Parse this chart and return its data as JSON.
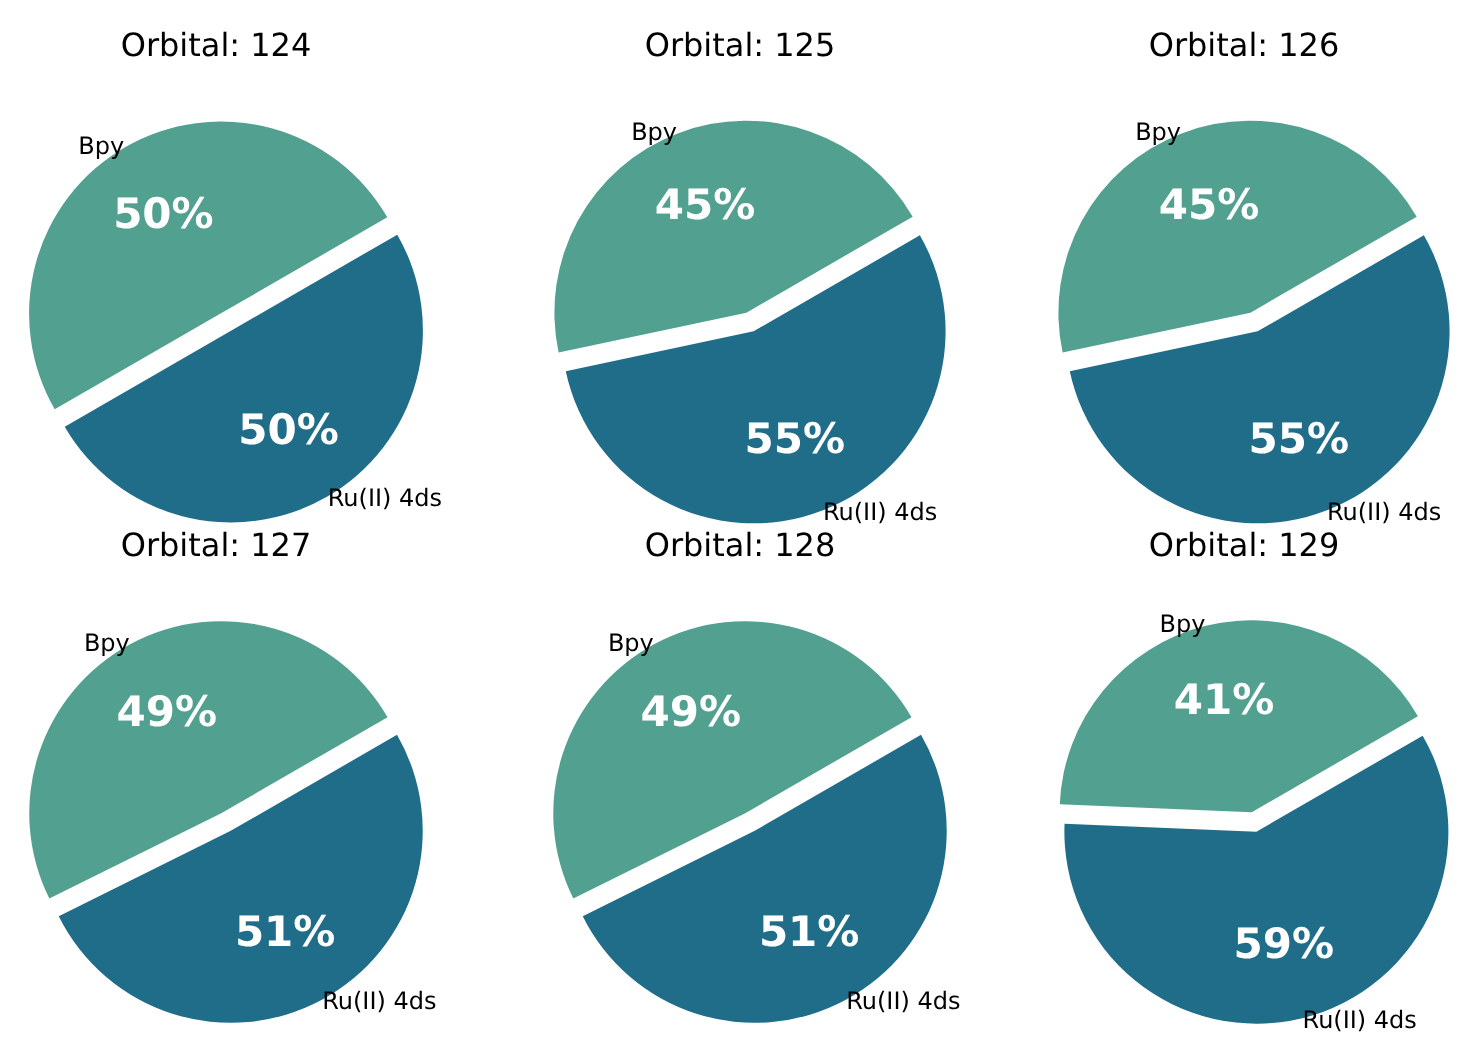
{
  "chart_data": [
    {
      "type": "pie",
      "title": "Orbital: 124",
      "categories": [
        "Bpy",
        "Ru(II) 4ds"
      ],
      "values": [
        50,
        50
      ],
      "colors": [
        "#52a090",
        "#206d8a"
      ],
      "value_labels": [
        "50%",
        "50%"
      ]
    },
    {
      "type": "pie",
      "title": "Orbital: 125",
      "categories": [
        "Bpy",
        "Ru(II) 4ds"
      ],
      "values": [
        45,
        55
      ],
      "colors": [
        "#52a090",
        "#206d8a"
      ],
      "value_labels": [
        "45%",
        "55%"
      ]
    },
    {
      "type": "pie",
      "title": "Orbital: 126",
      "categories": [
        "Bpy",
        "Ru(II) 4ds"
      ],
      "values": [
        45,
        55
      ],
      "colors": [
        "#52a090",
        "#206d8a"
      ],
      "value_labels": [
        "45%",
        "55%"
      ]
    },
    {
      "type": "pie",
      "title": "Orbital: 127",
      "categories": [
        "Bpy",
        "Ru(II) 4ds"
      ],
      "values": [
        49,
        51
      ],
      "colors": [
        "#52a090",
        "#206d8a"
      ],
      "value_labels": [
        "49%",
        "51%"
      ]
    },
    {
      "type": "pie",
      "title": "Orbital: 128",
      "categories": [
        "Bpy",
        "Ru(II) 4ds"
      ],
      "values": [
        49,
        51
      ],
      "colors": [
        "#52a090",
        "#206d8a"
      ],
      "value_labels": [
        "49%",
        "51%"
      ]
    },
    {
      "type": "pie",
      "title": "Orbital: 129",
      "categories": [
        "Bpy",
        "Ru(II) 4ds"
      ],
      "values": [
        41,
        59
      ],
      "colors": [
        "#52a090",
        "#206d8a"
      ],
      "value_labels": [
        "41%",
        "59%"
      ]
    }
  ]
}
